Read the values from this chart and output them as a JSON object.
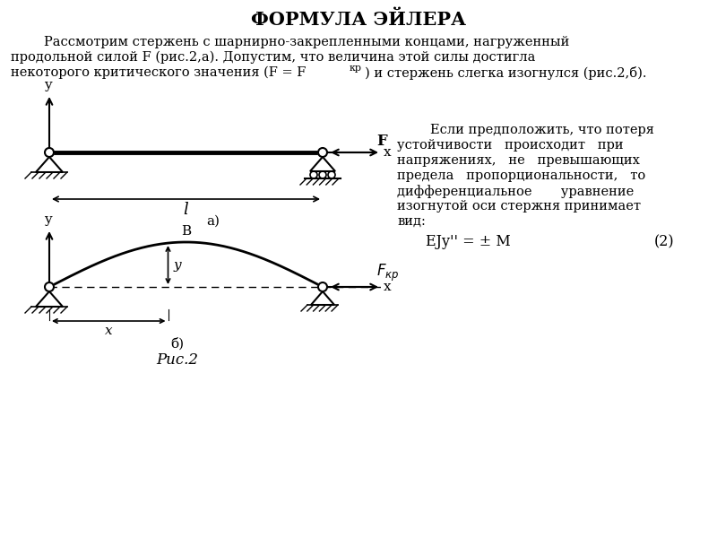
{
  "title": "ФОРМУЛА ЭЙЛЕРА",
  "title_fontsize": 15,
  "body_line1": "        Рассмотрим стержень с шарнирно-закрепленными концами, нагруженный",
  "body_line2": "продольной силой F (рис.2,а). Допустим, что величина этой силы достигла",
  "body_line3": "некоторого критического значения (F = Fкр) и стержень слегка изогнулся (рис.2,б).",
  "right_lines": [
    "        Если предположить, что потеря",
    "устойчивости   происходит   при",
    "напряжениях,   не   превышающих",
    "предела   пропорциональности,   то",
    "дифференциальное       уравнение",
    "изогнутой оси стержня принимает",
    "вид:"
  ],
  "equation": "EJy'' = ± M",
  "eq_number": "(2)",
  "fig_caption": "Рис.2",
  "background_color": "#ffffff",
  "text_color": "#000000",
  "line_color": "#000000"
}
